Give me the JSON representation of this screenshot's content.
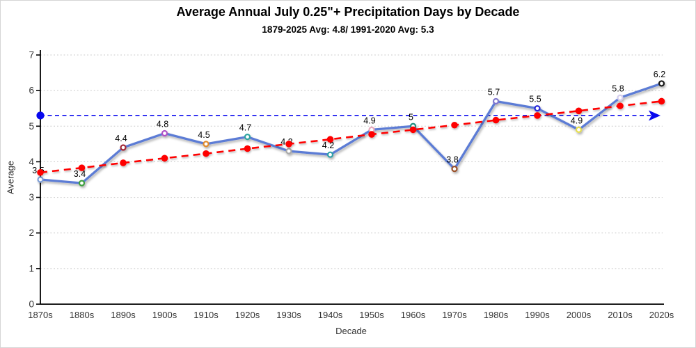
{
  "header": {
    "title": "Average Annual July 0.25\"+ Precipitation Days by Decade",
    "subtitle": "1879-2025 Avg: 4.8/ 1991-2020 Avg: 5.3"
  },
  "chart_data": {
    "type": "line",
    "title": "Average Annual July 0.25\"+ Precipitation Days by Decade",
    "subtitle": "1879-2025 Avg: 4.8/ 1991-2020 Avg: 5.3",
    "xlabel": "Decade",
    "ylabel": "Average",
    "ylim": [
      0,
      7
    ],
    "yticks": [
      0,
      1,
      2,
      3,
      4,
      5,
      6,
      7
    ],
    "grid": "horizontal-dotted",
    "legend": "none",
    "categories": [
      "1870s",
      "1880s",
      "1890s",
      "1900s",
      "1910s",
      "1920s",
      "1930s",
      "1940s",
      "1950s",
      "1960s",
      "1970s",
      "1980s",
      "1990s",
      "2000s",
      "2010s",
      "2020s"
    ],
    "series": [
      {
        "name": "decade-average",
        "style": "solid-line-with-markers",
        "line_color": "#5B7BD5",
        "marker_fill": "#FFFFFF",
        "values": [
          3.5,
          3.4,
          4.4,
          4.8,
          4.5,
          4.7,
          4.3,
          4.2,
          4.9,
          5,
          3.8,
          5.7,
          5.5,
          4.9,
          5.8,
          6.2
        ],
        "point_labels": [
          "3.5",
          "3.4",
          "4.4",
          "4.8",
          "4.5",
          "4.7",
          "4.3",
          "4.2",
          "4.9",
          "5",
          "3.8",
          "5.7",
          "5.5",
          "4.9",
          "5.8",
          "6.2"
        ],
        "marker_colors": [
          "#7F9FD8",
          "#3FA13F",
          "#A12835",
          "#B052C8",
          "#E18A2C",
          "#2EA3A0",
          "#A9A9A9",
          "#2E9FA8",
          "#E7A9BE",
          "#1E8F80",
          "#99512C",
          "#7E74CE",
          "#2626D9",
          "#E5DE4E",
          "#D4CDED",
          "#141414"
        ]
      },
      {
        "name": "linear-trend",
        "style": "dashed-line-with-markers",
        "color": "#FE0000",
        "values": [
          3.7,
          3.83,
          3.97,
          4.1,
          4.23,
          4.37,
          4.5,
          4.63,
          4.77,
          4.9,
          5.03,
          5.17,
          5.3,
          5.43,
          5.57,
          5.7
        ]
      },
      {
        "name": "reference-1991-2020-average",
        "style": "dashed-hline-with-dot-and-arrow",
        "color": "#0808EE",
        "value": 5.3
      }
    ],
    "colors": {
      "grid": "#C8C8C8",
      "axis": "#000000",
      "tick_label": "#333333",
      "data_label": "#000000"
    }
  }
}
